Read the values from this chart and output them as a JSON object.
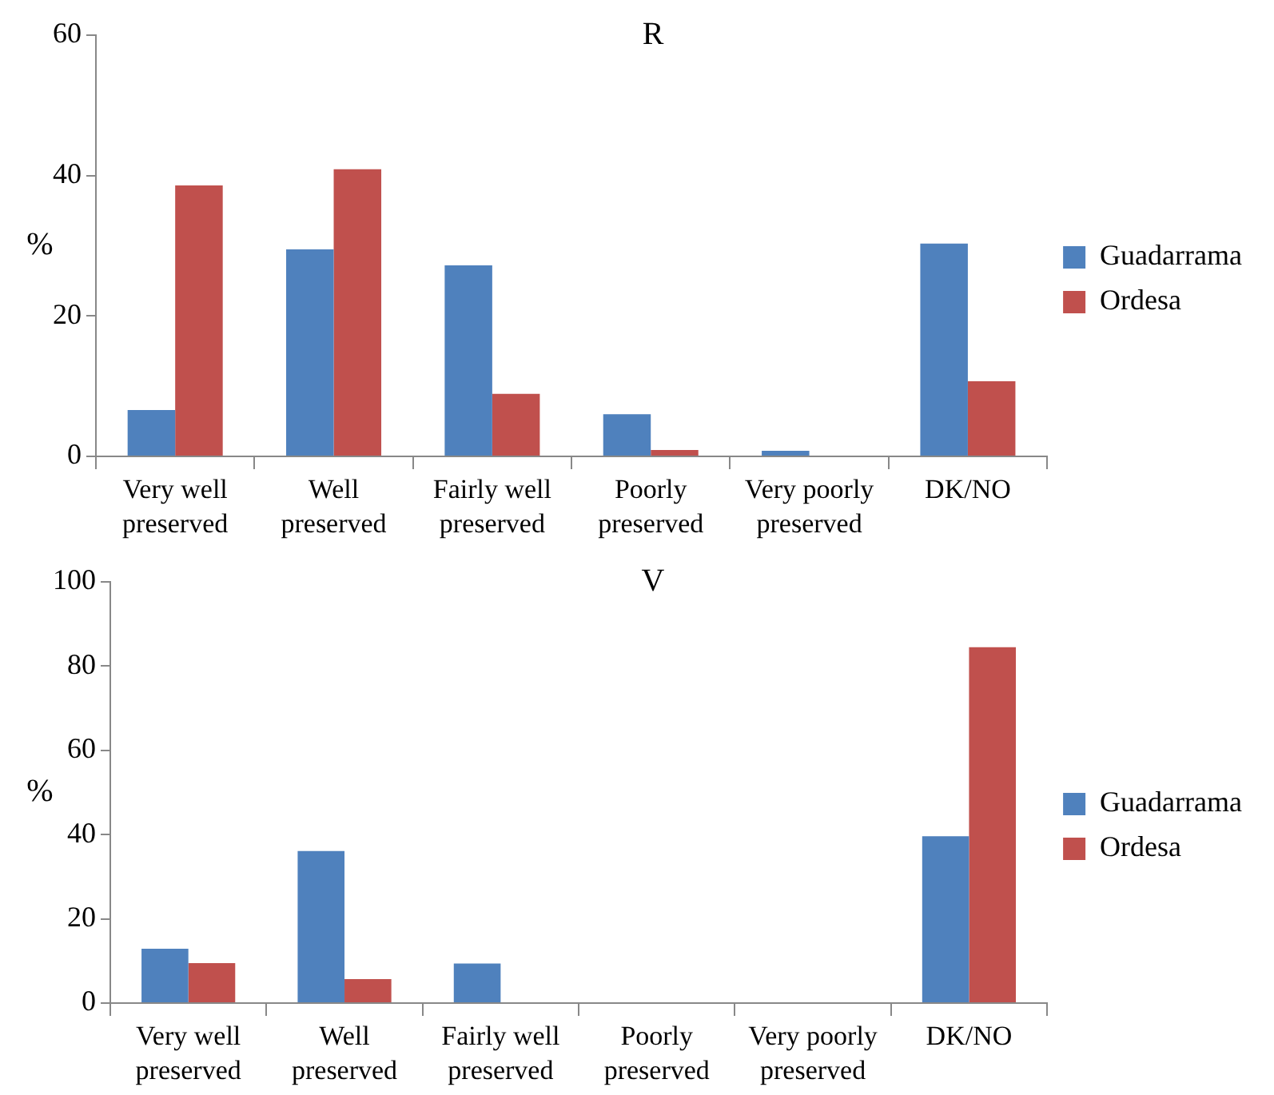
{
  "chart_data": [
    {
      "type": "bar",
      "title": "R",
      "ylabel": "%",
      "categories": [
        "Very well preserved",
        "Well preserved",
        "Fairly well preserved",
        "Poorly preserved",
        "Very poorly preserved",
        "DK/NO"
      ],
      "series": [
        {
          "name": "Guadarrama",
          "color": "#4f81bd",
          "values": [
            6.6,
            29.5,
            27.2,
            6,
            0.8,
            30.3
          ]
        },
        {
          "name": "Ordesa",
          "color": "#c0504d",
          "values": [
            38.6,
            40.9,
            8.9,
            0.9,
            0,
            10.7
          ]
        }
      ],
      "ylim": [
        0,
        60
      ],
      "yticks": [
        0,
        20,
        40,
        60
      ],
      "grid": false,
      "legend": "right"
    },
    {
      "type": "bar",
      "title": "V",
      "ylabel": "%",
      "categories": [
        "Very well preserved",
        "Well preserved",
        "Fairly well preserved",
        "Poorly preserved",
        "Very poorly preserved",
        "DK/NO"
      ],
      "series": [
        {
          "name": "Guadarrama",
          "color": "#4f81bd",
          "values": [
            12.9,
            36.1,
            9.4,
            0,
            0,
            39.6
          ]
        },
        {
          "name": "Ordesa",
          "color": "#c0504d",
          "values": [
            9.5,
            5.7,
            0,
            0,
            0,
            84.5
          ]
        }
      ],
      "ylim": [
        0,
        100
      ],
      "yticks": [
        0,
        20,
        40,
        60,
        80,
        100
      ],
      "grid": false,
      "legend": "right"
    }
  ]
}
